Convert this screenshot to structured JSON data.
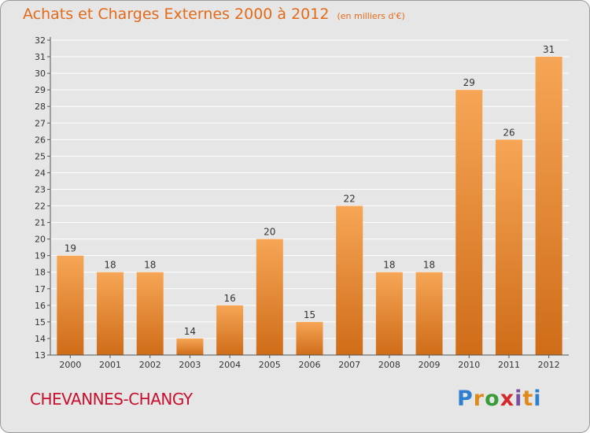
{
  "header": {
    "title": "Achats et Charges Externes 2000 à 2012",
    "unit": "(en milliers d'€)"
  },
  "footer": {
    "commune": "CHEVANNES-CHANGY"
  },
  "logo": {
    "letters": [
      "P",
      "r",
      "o",
      "x",
      "i",
      "t",
      "i"
    ],
    "colors": [
      "#2d7fd0",
      "#e08a1c",
      "#3a9b3a",
      "#d6282c",
      "#7a4fa2",
      "#e08a1c",
      "#2d7fd0"
    ]
  },
  "colors": {
    "bar_top": "#f6a656",
    "bar_bottom": "#cf6c18",
    "text": "#333333",
    "grid": "#ffffff",
    "title": "#e46a1a"
  },
  "chart_data": {
    "type": "bar",
    "title": "Achats et Charges Externes 2000 à 2012",
    "subtitle": "(en milliers d'€)",
    "xlabel": "",
    "ylabel": "",
    "categories": [
      "2000",
      "2001",
      "2002",
      "2003",
      "2004",
      "2005",
      "2006",
      "2007",
      "2008",
      "2009",
      "2010",
      "2011",
      "2012"
    ],
    "values": [
      19,
      18,
      18,
      14,
      16,
      20,
      15,
      22,
      18,
      18,
      29,
      26,
      31
    ],
    "ylim": [
      13,
      32
    ],
    "yticks": [
      13,
      14,
      15,
      16,
      17,
      18,
      19,
      20,
      21,
      22,
      23,
      24,
      25,
      26,
      27,
      28,
      29,
      30,
      31,
      32
    ],
    "grid": true,
    "data_labels": true
  }
}
